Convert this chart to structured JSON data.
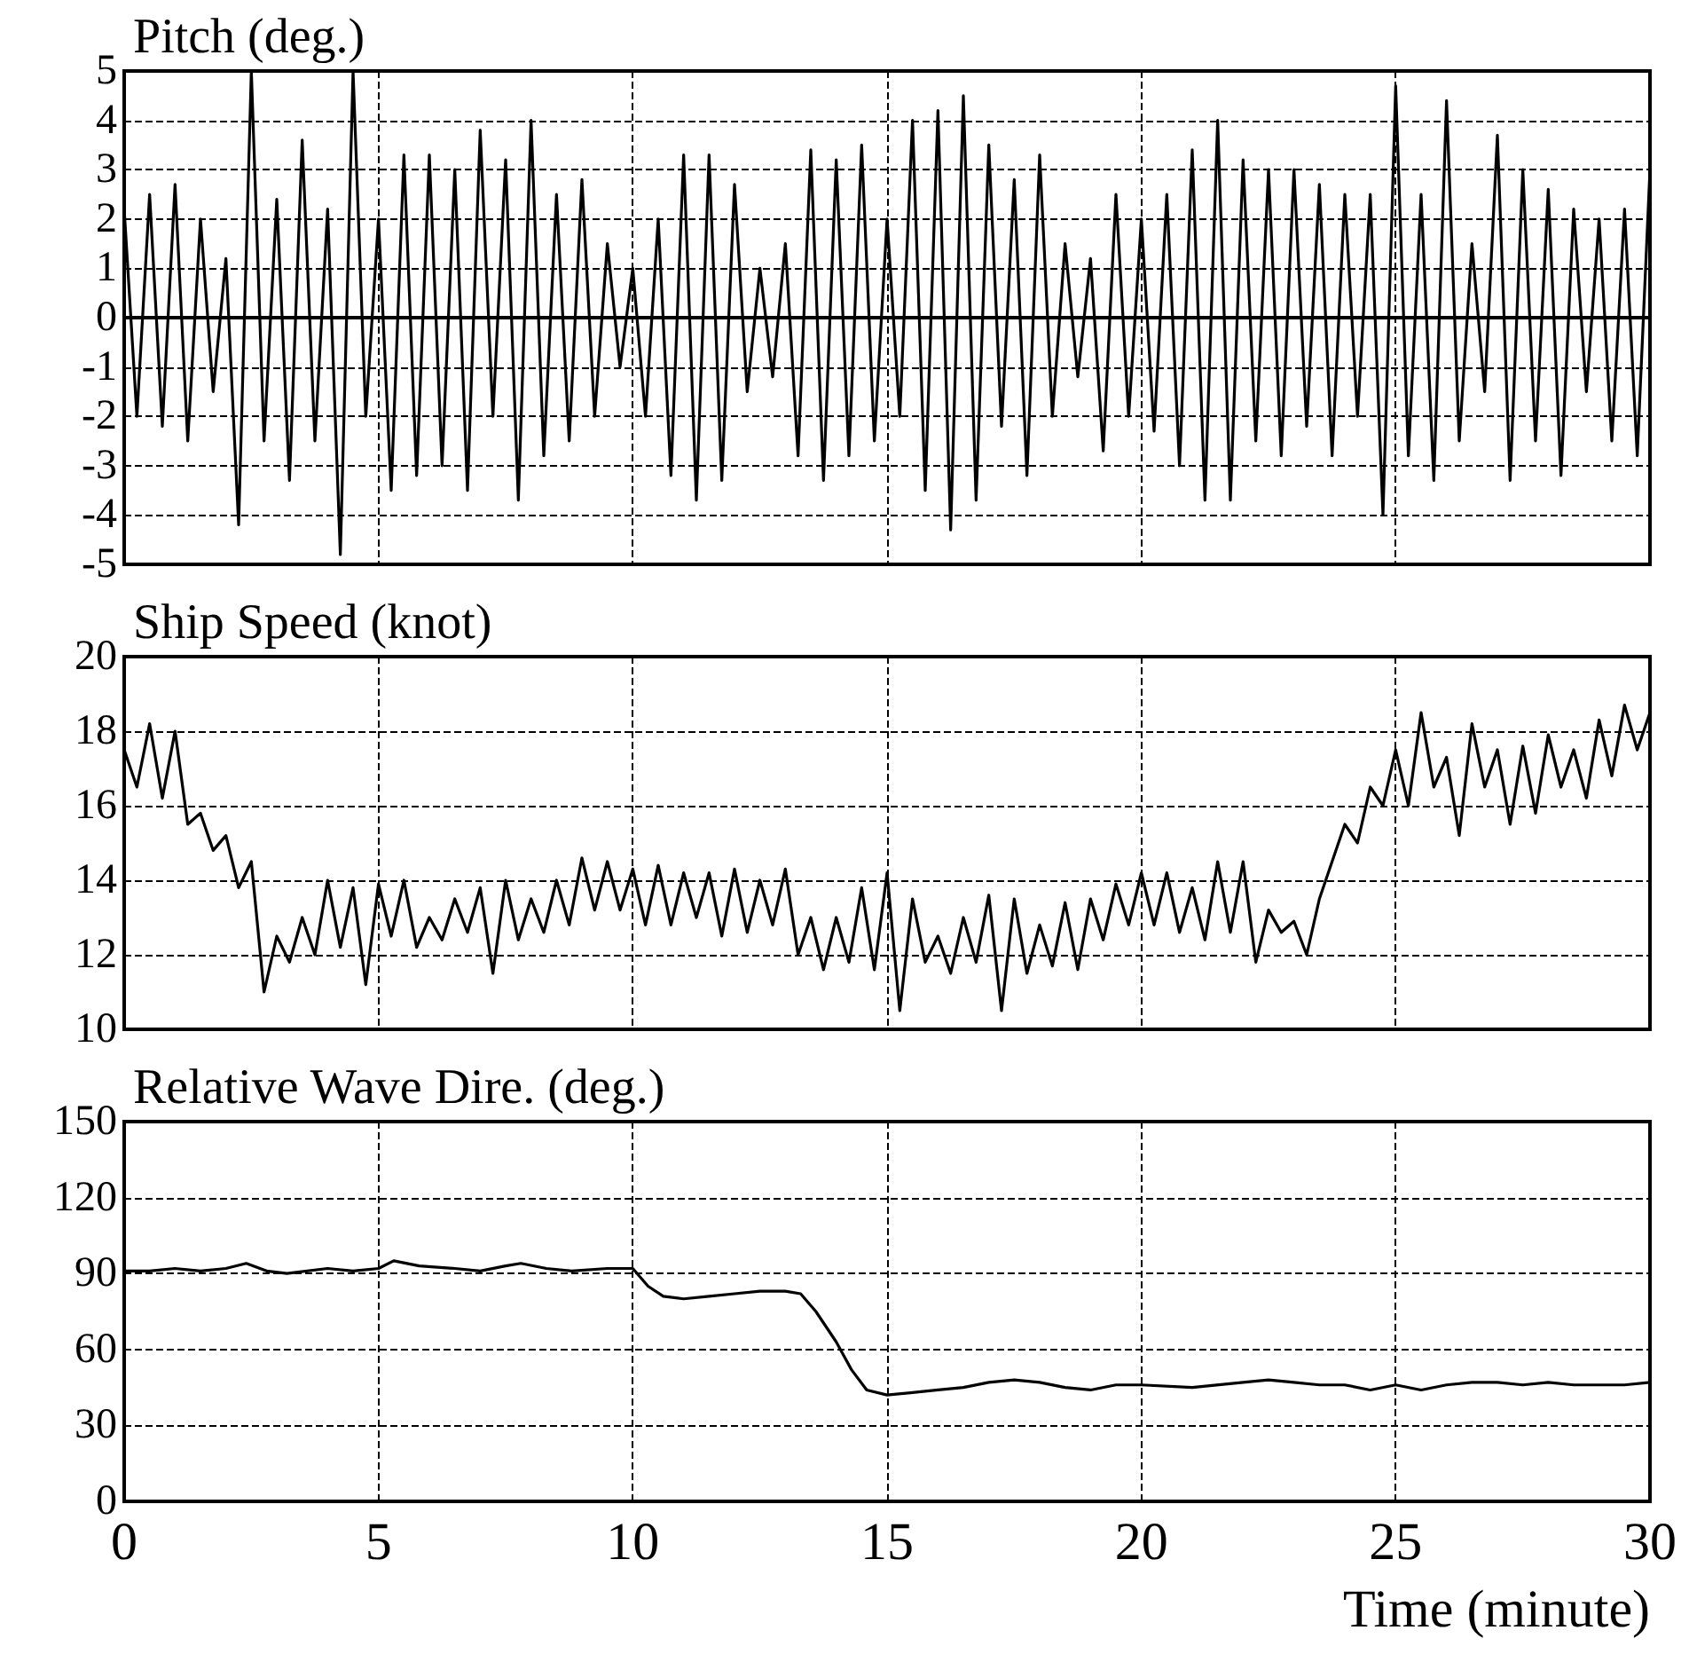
{
  "chart_data": [
    {
      "type": "line",
      "title": "Pitch (deg.)",
      "xlim": [
        0,
        30
      ],
      "xticks": [
        0,
        5,
        10,
        15,
        20,
        25,
        30
      ],
      "ylim": [
        -5,
        5
      ],
      "yticks": [
        -5,
        -4,
        -3,
        -2,
        -1,
        0,
        1,
        2,
        3,
        4,
        5
      ],
      "grid": true,
      "tick_labels": "y",
      "marker": "none",
      "x": [
        0,
        0.25,
        0.5,
        0.75,
        1,
        1.25,
        1.5,
        1.75,
        2,
        2.25,
        2.5,
        2.75,
        3,
        3.25,
        3.5,
        3.75,
        4,
        4.25,
        4.5,
        4.75,
        5,
        5.25,
        5.5,
        5.75,
        6,
        6.25,
        6.5,
        6.75,
        7,
        7.25,
        7.5,
        7.75,
        8,
        8.25,
        8.5,
        8.75,
        9,
        9.25,
        9.5,
        9.75,
        10,
        10.25,
        10.5,
        10.75,
        11,
        11.25,
        11.5,
        11.75,
        12,
        12.25,
        12.5,
        12.75,
        13,
        13.25,
        13.5,
        13.75,
        14,
        14.25,
        14.5,
        14.75,
        15,
        15.25,
        15.5,
        15.75,
        16,
        16.25,
        16.5,
        16.75,
        17,
        17.25,
        17.5,
        17.75,
        18,
        18.25,
        18.5,
        18.75,
        19,
        19.25,
        19.5,
        19.75,
        20,
        20.25,
        20.5,
        20.75,
        21,
        21.25,
        21.5,
        21.75,
        22,
        22.25,
        22.5,
        22.75,
        23,
        23.25,
        23.5,
        23.75,
        24,
        24.25,
        24.5,
        24.75,
        25,
        25.25,
        25.5,
        25.75,
        26,
        26.25,
        26.5,
        26.75,
        27,
        27.25,
        27.5,
        27.75,
        28,
        28.25,
        28.5,
        28.75,
        29,
        29.25,
        29.5,
        29.75,
        30
      ],
      "series": [
        {
          "color": "#000000",
          "values": [
            2.2,
            -2,
            2.5,
            -2.2,
            2.7,
            -2.5,
            2,
            -1.5,
            1.2,
            -4.2,
            5,
            -2.5,
            2.4,
            -3.3,
            3.6,
            -2.5,
            2.2,
            -4.8,
            5,
            -2,
            2,
            -3.5,
            3.3,
            -3.2,
            3.3,
            -3,
            3,
            -3.5,
            3.8,
            -2,
            3.2,
            -3.7,
            4,
            -2.8,
            2.5,
            -2.5,
            2.8,
            -2,
            1.5,
            -1,
            1,
            -2,
            2,
            -3.2,
            3.3,
            -3.7,
            3.3,
            -3.3,
            2.7,
            -1.5,
            1,
            -1.2,
            1.5,
            -2.8,
            3.4,
            -3.3,
            3.2,
            -2.8,
            3.5,
            -2.5,
            2,
            -2,
            4,
            -3.5,
            4.2,
            -4.3,
            4.5,
            -3.7,
            3.5,
            -2.2,
            2.8,
            -3.2,
            3.3,
            -2,
            1.5,
            -1.2,
            1.2,
            -2.7,
            2.5,
            -2,
            2,
            -2.3,
            2.5,
            -3,
            3.4,
            -3.7,
            4,
            -3.7,
            3.2,
            -2.5,
            3,
            -2.8,
            3,
            -2.2,
            2.7,
            -2.8,
            2.5,
            -2,
            2.5,
            -4,
            4.7,
            -2.8,
            2.5,
            -3.3,
            4.4,
            -2.5,
            1.5,
            -1.5,
            3.7,
            -3.3,
            3,
            -2.5,
            2.6,
            -3.2,
            2.2,
            -1.5,
            2,
            -2.5,
            2.2,
            -2.8,
            3
          ]
        }
      ]
    },
    {
      "type": "line",
      "title": "Ship Speed (knot)",
      "xlim": [
        0,
        30
      ],
      "xticks": [
        0,
        5,
        10,
        15,
        20,
        25,
        30
      ],
      "ylim": [
        10,
        20
      ],
      "yticks": [
        10,
        12,
        14,
        16,
        18,
        20
      ],
      "grid": true,
      "tick_labels": "y",
      "marker": "none",
      "x": [
        0,
        0.25,
        0.5,
        0.75,
        1,
        1.25,
        1.5,
        1.75,
        2,
        2.25,
        2.5,
        2.75,
        3,
        3.25,
        3.5,
        3.75,
        4,
        4.25,
        4.5,
        4.75,
        5,
        5.25,
        5.5,
        5.75,
        6,
        6.25,
        6.5,
        6.75,
        7,
        7.25,
        7.5,
        7.75,
        8,
        8.25,
        8.5,
        8.75,
        9,
        9.25,
        9.5,
        9.75,
        10,
        10.25,
        10.5,
        10.75,
        11,
        11.25,
        11.5,
        11.75,
        12,
        12.25,
        12.5,
        12.75,
        13,
        13.25,
        13.5,
        13.75,
        14,
        14.25,
        14.5,
        14.75,
        15,
        15.25,
        15.5,
        15.75,
        16,
        16.25,
        16.5,
        16.75,
        17,
        17.25,
        17.5,
        17.75,
        18,
        18.25,
        18.5,
        18.75,
        19,
        19.25,
        19.5,
        19.75,
        20,
        20.25,
        20.5,
        20.75,
        21,
        21.25,
        21.5,
        21.75,
        22,
        22.25,
        22.5,
        22.75,
        23,
        23.25,
        23.5,
        23.75,
        24,
        24.25,
        24.5,
        24.75,
        25,
        25.25,
        25.5,
        25.75,
        26,
        26.25,
        26.5,
        26.75,
        27,
        27.25,
        27.5,
        27.75,
        28,
        28.25,
        28.5,
        28.75,
        29,
        29.25,
        29.5,
        29.75,
        30
      ],
      "series": [
        {
          "color": "#000000",
          "values": [
            17.5,
            16.5,
            18.2,
            16.2,
            18,
            15.5,
            15.8,
            14.8,
            15.2,
            13.8,
            14.5,
            11,
            12.5,
            11.8,
            13,
            12,
            14,
            12.2,
            13.8,
            11.2,
            13.9,
            12.5,
            14,
            12.2,
            13,
            12.4,
            13.5,
            12.6,
            13.8,
            11.5,
            14,
            12.4,
            13.5,
            12.6,
            14,
            12.8,
            14.6,
            13.2,
            14.5,
            13.2,
            14.3,
            12.8,
            14.4,
            12.8,
            14.2,
            13,
            14.2,
            12.5,
            14.3,
            12.6,
            14,
            12.8,
            14.3,
            12,
            13,
            11.6,
            13,
            11.8,
            13.8,
            11.6,
            14.2,
            10.5,
            13.5,
            11.8,
            12.5,
            11.5,
            13,
            11.8,
            13.6,
            10.5,
            13.5,
            11.5,
            12.8,
            11.7,
            13.4,
            11.6,
            13.5,
            12.4,
            13.9,
            12.8,
            14.2,
            12.8,
            14.2,
            12.6,
            13.8,
            12.4,
            14.5,
            12.6,
            14.5,
            11.8,
            13.2,
            12.6,
            12.9,
            12,
            13.5,
            14.5,
            15.5,
            15,
            16.5,
            16,
            17.5,
            16,
            18.5,
            16.5,
            17.3,
            15.2,
            18.2,
            16.5,
            17.5,
            15.5,
            17.6,
            15.8,
            17.9,
            16.5,
            17.5,
            16.2,
            18.3,
            16.8,
            18.7,
            17.5,
            18.5
          ]
        }
      ]
    },
    {
      "type": "line",
      "title": "Relative Wave Dire. (deg.)",
      "xlabel": "Time (minute)",
      "xlim": [
        0,
        30
      ],
      "xticks": [
        0,
        5,
        10,
        15,
        20,
        25,
        30
      ],
      "ylim": [
        0,
        150
      ],
      "yticks": [
        0,
        30,
        60,
        90,
        120,
        150
      ],
      "grid": true,
      "marker": "none",
      "x": [
        0,
        0.5,
        1,
        1.5,
        2,
        2.4,
        2.8,
        3.2,
        4,
        4.5,
        5,
        5.3,
        5.8,
        6.5,
        7,
        7.5,
        7.8,
        8.3,
        8.8,
        9.5,
        10,
        10.3,
        10.6,
        11,
        11.5,
        12,
        12.5,
        13,
        13.3,
        13.6,
        14,
        14.3,
        14.6,
        15,
        15.5,
        16,
        16.5,
        17,
        17.5,
        18,
        18.5,
        19,
        19.5,
        20,
        21,
        22,
        22.5,
        23,
        23.5,
        24,
        24.5,
        25,
        25.5,
        26,
        26.5,
        27,
        27.5,
        28,
        28.5,
        29,
        29.5,
        30
      ],
      "series": [
        {
          "color": "#000000",
          "values": [
            91,
            91,
            92,
            91,
            92,
            94,
            91,
            90,
            92,
            91,
            92,
            95,
            93,
            92,
            91,
            93,
            94,
            92,
            91,
            92,
            92,
            85,
            81,
            80,
            81,
            82,
            83,
            83,
            82,
            75,
            63,
            52,
            44,
            42,
            43,
            44,
            45,
            47,
            48,
            47,
            45,
            44,
            46,
            46,
            45,
            47,
            48,
            47,
            46,
            46,
            44,
            46,
            44,
            46,
            47,
            47,
            46,
            47,
            46,
            46,
            46,
            47
          ]
        }
      ]
    }
  ]
}
